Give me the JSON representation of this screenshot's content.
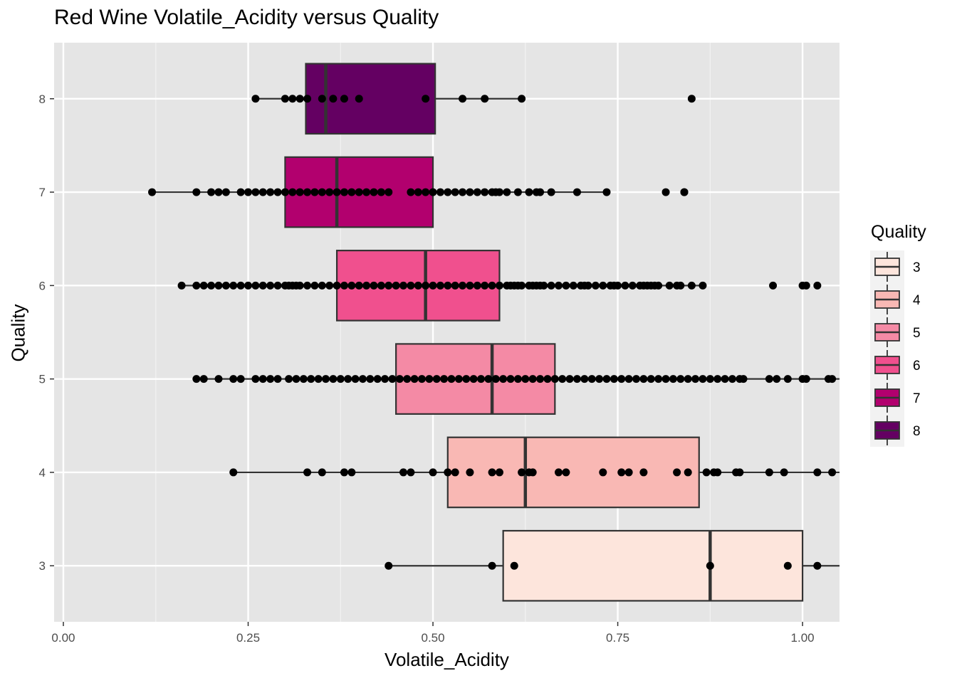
{
  "chart_data": {
    "type": "boxplot",
    "title": "Red Wine Volatile_Acidity versus Quality",
    "xlabel": "Volatile_Acidity",
    "ylabel": "Quality",
    "xlim": [
      -0.0125,
      1.05
    ],
    "x_ticks": [
      "0.00",
      "0.25",
      "0.50",
      "0.75",
      "1.00"
    ],
    "categories": [
      "3",
      "4",
      "5",
      "6",
      "7",
      "8"
    ],
    "grid": true,
    "legend": {
      "title": "Quality",
      "placement": "right",
      "entries": [
        "3",
        "4",
        "5",
        "6",
        "7",
        "8"
      ]
    },
    "series": [
      {
        "name": "3",
        "color": "#fde5dc",
        "whisker_low": 0.44,
        "q1": 0.595,
        "median": 0.875,
        "q3": 1.0,
        "whisker_high": 1.06,
        "points": [
          0.44,
          0.58,
          0.61,
          0.875,
          0.98,
          1.02
        ]
      },
      {
        "name": "4",
        "color": "#f9b8b4",
        "whisker_low": 0.23,
        "q1": 0.52,
        "median": 0.625,
        "q3": 0.86,
        "whisker_high": 1.06,
        "points": [
          0.23,
          0.33,
          0.35,
          0.38,
          0.39,
          0.46,
          0.47,
          0.5,
          0.52,
          0.53,
          0.55,
          0.58,
          0.59,
          0.62,
          0.63,
          0.635,
          0.67,
          0.68,
          0.73,
          0.755,
          0.765,
          0.785,
          0.83,
          0.845,
          0.87,
          0.88,
          0.885,
          0.91,
          0.915,
          0.955,
          0.975,
          1.02,
          1.04
        ]
      },
      {
        "name": "5",
        "color": "#f48aa5",
        "whisker_low": 0.18,
        "q1": 0.45,
        "median": 0.58,
        "q3": 0.665,
        "whisker_high": 1.06,
        "points": [
          0.18,
          0.19,
          0.21,
          0.23,
          0.24,
          0.26,
          0.27,
          0.28,
          0.29,
          0.305,
          0.315,
          0.325,
          0.335,
          0.345,
          0.355,
          0.365,
          0.375,
          0.385,
          0.395,
          0.405,
          0.415,
          0.425,
          0.435,
          0.445,
          0.455,
          0.465,
          0.475,
          0.485,
          0.495,
          0.505,
          0.515,
          0.525,
          0.535,
          0.545,
          0.555,
          0.565,
          0.575,
          0.585,
          0.595,
          0.605,
          0.615,
          0.625,
          0.635,
          0.645,
          0.655,
          0.665,
          0.675,
          0.685,
          0.695,
          0.705,
          0.715,
          0.725,
          0.735,
          0.745,
          0.755,
          0.765,
          0.775,
          0.785,
          0.795,
          0.805,
          0.815,
          0.825,
          0.835,
          0.845,
          0.855,
          0.865,
          0.875,
          0.885,
          0.895,
          0.905,
          0.915,
          0.92,
          0.955,
          0.965,
          0.98,
          1.0,
          1.005,
          1.035,
          1.04
        ]
      },
      {
        "name": "6",
        "color": "#f0508e",
        "whisker_low": 0.16,
        "q1": 0.37,
        "median": 0.49,
        "q3": 0.59,
        "whisker_high": 0.87,
        "points": [
          0.16,
          0.18,
          0.19,
          0.2,
          0.21,
          0.22,
          0.23,
          0.24,
          0.25,
          0.26,
          0.27,
          0.28,
          0.29,
          0.3,
          0.305,
          0.31,
          0.315,
          0.32,
          0.33,
          0.34,
          0.35,
          0.36,
          0.37,
          0.38,
          0.39,
          0.4,
          0.41,
          0.42,
          0.43,
          0.44,
          0.45,
          0.46,
          0.47,
          0.48,
          0.49,
          0.5,
          0.51,
          0.52,
          0.53,
          0.54,
          0.55,
          0.56,
          0.57,
          0.58,
          0.59,
          0.6,
          0.605,
          0.61,
          0.615,
          0.62,
          0.63,
          0.635,
          0.64,
          0.645,
          0.65,
          0.66,
          0.67,
          0.68,
          0.69,
          0.7,
          0.705,
          0.71,
          0.72,
          0.73,
          0.74,
          0.745,
          0.75,
          0.76,
          0.77,
          0.78,
          0.785,
          0.79,
          0.795,
          0.8,
          0.805,
          0.82,
          0.83,
          0.835,
          0.85,
          0.865,
          0.96,
          1.0,
          1.005,
          1.02
        ]
      },
      {
        "name": "7",
        "color": "#b2006e",
        "whisker_low": 0.12,
        "q1": 0.3,
        "median": 0.37,
        "q3": 0.5,
        "whisker_high": 0.735,
        "points": [
          0.12,
          0.18,
          0.2,
          0.21,
          0.22,
          0.24,
          0.25,
          0.26,
          0.27,
          0.28,
          0.29,
          0.3,
          0.31,
          0.32,
          0.33,
          0.34,
          0.35,
          0.36,
          0.37,
          0.38,
          0.39,
          0.4,
          0.41,
          0.42,
          0.43,
          0.44,
          0.47,
          0.48,
          0.49,
          0.5,
          0.51,
          0.52,
          0.53,
          0.54,
          0.55,
          0.56,
          0.57,
          0.58,
          0.585,
          0.59,
          0.6,
          0.615,
          0.63,
          0.64,
          0.645,
          0.66,
          0.695,
          0.735,
          0.815,
          0.84,
          0.84
        ]
      },
      {
        "name": "8",
        "color": "#640062",
        "whisker_low": 0.26,
        "q1": 0.328,
        "median": 0.355,
        "q3": 0.503,
        "whisker_high": 0.62,
        "points": [
          0.26,
          0.3,
          0.31,
          0.32,
          0.33,
          0.35,
          0.365,
          0.38,
          0.4,
          0.49,
          0.54,
          0.57,
          0.62,
          0.85
        ]
      }
    ]
  }
}
